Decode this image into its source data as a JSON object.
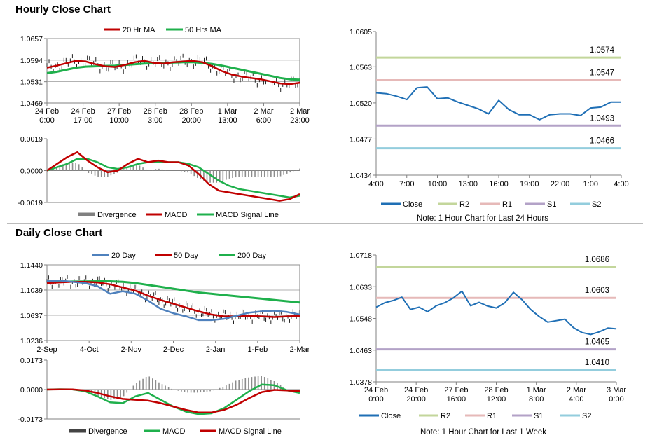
{
  "sections": {
    "hourly_title": "Hourly Close Chart",
    "daily_title": "Daily Close Chart"
  },
  "colors": {
    "red": "#c00000",
    "green": "#1fb04c",
    "blue": "#4f81bd",
    "darkblue": "#1f6fb5",
    "gray": "#808080",
    "r2": "#c3d69b",
    "r1": "#e6b9b8",
    "s1": "#b3a2c7",
    "s2": "#93cddd"
  },
  "chart_data": [
    {
      "id": "hourly_price",
      "type": "line",
      "legend": [
        "20 Hr MA",
        "50 Hrs MA"
      ],
      "ylim": [
        1.0469,
        1.0657
      ],
      "yticks": [
        "1.0657",
        "1.0594",
        "1.0531",
        "1.0469"
      ],
      "xticks": [
        [
          "24 Feb",
          "0:00"
        ],
        [
          "24 Feb",
          "17:00"
        ],
        [
          "27 Feb",
          "10:00"
        ],
        [
          "28 Feb",
          "3:00"
        ],
        [
          "28 Feb",
          "20:00"
        ],
        [
          "1 Mar",
          "13:00"
        ],
        [
          "2 Mar",
          "6:00"
        ],
        [
          "2 Mar",
          "23:00"
        ]
      ],
      "series": [
        {
          "name": "20 Hr MA",
          "values": [
            1.0572,
            1.0578,
            1.0585,
            1.0592,
            1.059,
            1.0582,
            1.0576,
            1.0574,
            1.058,
            1.0588,
            1.0592,
            1.0586,
            1.0584,
            1.0588,
            1.059,
            1.0592,
            1.0588,
            1.0576,
            1.0562,
            1.0552,
            1.0546,
            1.0542,
            1.0538,
            1.0532,
            1.0526,
            1.0524,
            1.0528
          ]
        },
        {
          "name": "50 Hrs MA",
          "values": [
            1.0556,
            1.056,
            1.0566,
            1.0572,
            1.0575,
            1.0576,
            1.0577,
            1.0578,
            1.058,
            1.0582,
            1.0584,
            1.0585,
            1.0586,
            1.0587,
            1.0588,
            1.0588,
            1.0586,
            1.0583,
            1.0578,
            1.0572,
            1.0566,
            1.056,
            1.0554,
            1.0548,
            1.0542,
            1.0538,
            1.0537
          ]
        }
      ]
    },
    {
      "id": "hourly_macd",
      "type": "line",
      "legend": [
        "Divergence",
        "MACD",
        "MACD Signal Line"
      ],
      "ylim": [
        -0.0019,
        0.0019
      ],
      "yticks": [
        "0.0019",
        "0.0000",
        "-0.0019"
      ],
      "series": [
        {
          "name": "MACD",
          "values": [
            0.0,
            0.0004,
            0.0008,
            0.0011,
            0.0006,
            0.0002,
            -0.0001,
            0.0,
            0.0004,
            0.0007,
            0.0005,
            0.0006,
            0.0005,
            0.0005,
            0.0003,
            -0.0002,
            -0.0008,
            -0.0012,
            -0.0013,
            -0.0014,
            -0.0015,
            -0.0016,
            -0.0017,
            -0.0018,
            -0.0017,
            -0.0014
          ]
        },
        {
          "name": "MACD Signal Line",
          "values": [
            0.0,
            0.0002,
            0.0004,
            0.0007,
            0.0007,
            0.0005,
            0.0002,
            0.0001,
            0.0002,
            0.0004,
            0.0005,
            0.0005,
            0.0005,
            0.0005,
            0.0004,
            0.0002,
            -0.0002,
            -0.0006,
            -0.0009,
            -0.0011,
            -0.0012,
            -0.0013,
            -0.0014,
            -0.0015,
            -0.0016,
            -0.0015
          ]
        }
      ]
    },
    {
      "id": "hourly_pivot",
      "type": "line",
      "ylim": [
        1.0434,
        1.0605
      ],
      "yticks": [
        "1.0605",
        "1.0563",
        "1.0520",
        "1.0477",
        "1.0434"
      ],
      "xticks": [
        "4:00",
        "7:00",
        "10:00",
        "13:00",
        "16:00",
        "19:00",
        "22:00",
        "1:00",
        "4:00"
      ],
      "levels": [
        {
          "name": "R2",
          "value": 1.0574,
          "label": "1.0574"
        },
        {
          "name": "R1",
          "value": 1.0547,
          "label": "1.0547"
        },
        {
          "name": "S1",
          "value": 1.0493,
          "label": "1.0493"
        },
        {
          "name": "S2",
          "value": 1.0466,
          "label": "1.0466"
        }
      ],
      "series": [
        {
          "name": "Close",
          "values": [
            1.0532,
            1.0531,
            1.0528,
            1.0524,
            1.0538,
            1.0539,
            1.0525,
            1.0526,
            1.0521,
            1.0517,
            1.0513,
            1.0507,
            1.0523,
            1.0512,
            1.0506,
            1.0506,
            1.05,
            1.0506,
            1.0507,
            1.0507,
            1.0505,
            1.0514,
            1.0515,
            1.0521,
            1.0521
          ]
        }
      ],
      "legend": [
        "Close",
        "R2",
        "R1",
        "S1",
        "S2"
      ],
      "note": "Note: 1 Hour Chart for Last 24 Hours"
    },
    {
      "id": "daily_price",
      "type": "line",
      "legend": [
        "20 Day",
        "50 Day",
        "200 Day"
      ],
      "ylim": [
        1.0236,
        1.144
      ],
      "yticks": [
        "1.1440",
        "1.1039",
        "1.0637",
        "1.0236"
      ],
      "xticks": [
        "2-Sep",
        "4-Oct",
        "2-Nov",
        "2-Dec",
        "2-Jan",
        "1-Feb",
        "2-Mar"
      ],
      "series": [
        {
          "name": "20 Day",
          "values": [
            1.118,
            1.119,
            1.117,
            1.115,
            1.11,
            1.098,
            1.102,
            1.098,
            1.087,
            1.074,
            1.067,
            1.062,
            1.056,
            1.056,
            1.058,
            1.063,
            1.068,
            1.07,
            1.071,
            1.069,
            1.065
          ]
        },
        {
          "name": "50 Day",
          "values": [
            1.115,
            1.116,
            1.117,
            1.117,
            1.116,
            1.113,
            1.108,
            1.103,
            1.095,
            1.088,
            1.082,
            1.076,
            1.07,
            1.065,
            1.062,
            1.062,
            1.063,
            1.062,
            1.061,
            1.062,
            1.063
          ]
        },
        {
          "name": "200 Day",
          "values": [
            1.117,
            1.1172,
            1.1174,
            1.1176,
            1.1178,
            1.1178,
            1.117,
            1.115,
            1.112,
            1.109,
            1.106,
            1.103,
            1.1,
            1.098,
            1.096,
            1.094,
            1.092,
            1.09,
            1.088,
            1.086,
            1.084
          ]
        }
      ]
    },
    {
      "id": "daily_macd",
      "type": "line",
      "legend": [
        "Divergence",
        "MACD",
        "MACD Signal Line"
      ],
      "ylim": [
        -0.0173,
        0.0173
      ],
      "yticks": [
        "0.0173",
        "0.0000",
        "-0.0173"
      ],
      "series": [
        {
          "name": "MACD",
          "values": [
            0.0,
            0.0002,
            0.0001,
            -0.001,
            -0.004,
            -0.0075,
            -0.008,
            -0.004,
            -0.002,
            -0.006,
            -0.01,
            -0.013,
            -0.0145,
            -0.014,
            -0.011,
            -0.006,
            -0.001,
            0.003,
            0.0025,
            -0.0005,
            -0.002
          ]
        },
        {
          "name": "MACD Signal Line",
          "values": [
            0.0,
            0.0001,
            0.0001,
            -0.0005,
            -0.002,
            -0.004,
            -0.0055,
            -0.006,
            -0.0065,
            -0.008,
            -0.01,
            -0.012,
            -0.0135,
            -0.0135,
            -0.012,
            -0.009,
            -0.005,
            -0.0015,
            -0.0002,
            -0.0005,
            -0.001
          ]
        }
      ]
    },
    {
      "id": "daily_pivot",
      "type": "line",
      "ylim": [
        1.0378,
        1.0718
      ],
      "yticks": [
        "1.0718",
        "1.0633",
        "1.0548",
        "1.0463",
        "1.0378"
      ],
      "xticks": [
        [
          "24 Feb",
          "0:00"
        ],
        [
          "24 Feb",
          "20:00"
        ],
        [
          "27 Feb",
          "16:00"
        ],
        [
          "28 Feb",
          "12:00"
        ],
        [
          "1 Mar",
          "8:00"
        ],
        [
          "2 Mar",
          "4:00"
        ],
        [
          "3 Mar",
          "0:00"
        ]
      ],
      "levels": [
        {
          "name": "R2",
          "value": 1.0686,
          "label": "1.0686"
        },
        {
          "name": "R1",
          "value": 1.0603,
          "label": "1.0603"
        },
        {
          "name": "S1",
          "value": 1.0465,
          "label": "1.0465"
        },
        {
          "name": "S2",
          "value": 1.041,
          "label": "1.0410"
        }
      ],
      "series": [
        {
          "name": "Close",
          "values": [
            1.0578,
            1.059,
            1.0596,
            1.0605,
            1.0572,
            1.0578,
            1.0566,
            1.0582,
            1.059,
            1.0603,
            1.0621,
            1.0582,
            1.0591,
            1.0581,
            1.0576,
            1.059,
            1.0618,
            1.0598,
            1.0572,
            1.0553,
            1.0538,
            1.0542,
            1.0546,
            1.0523,
            1.051,
            1.0505,
            1.0512,
            1.0522,
            1.052
          ]
        }
      ],
      "legend": [
        "Close",
        "R2",
        "R1",
        "S1",
        "S2"
      ],
      "note": "Note: 1 Hour Chart for Last 1 Week"
    }
  ]
}
